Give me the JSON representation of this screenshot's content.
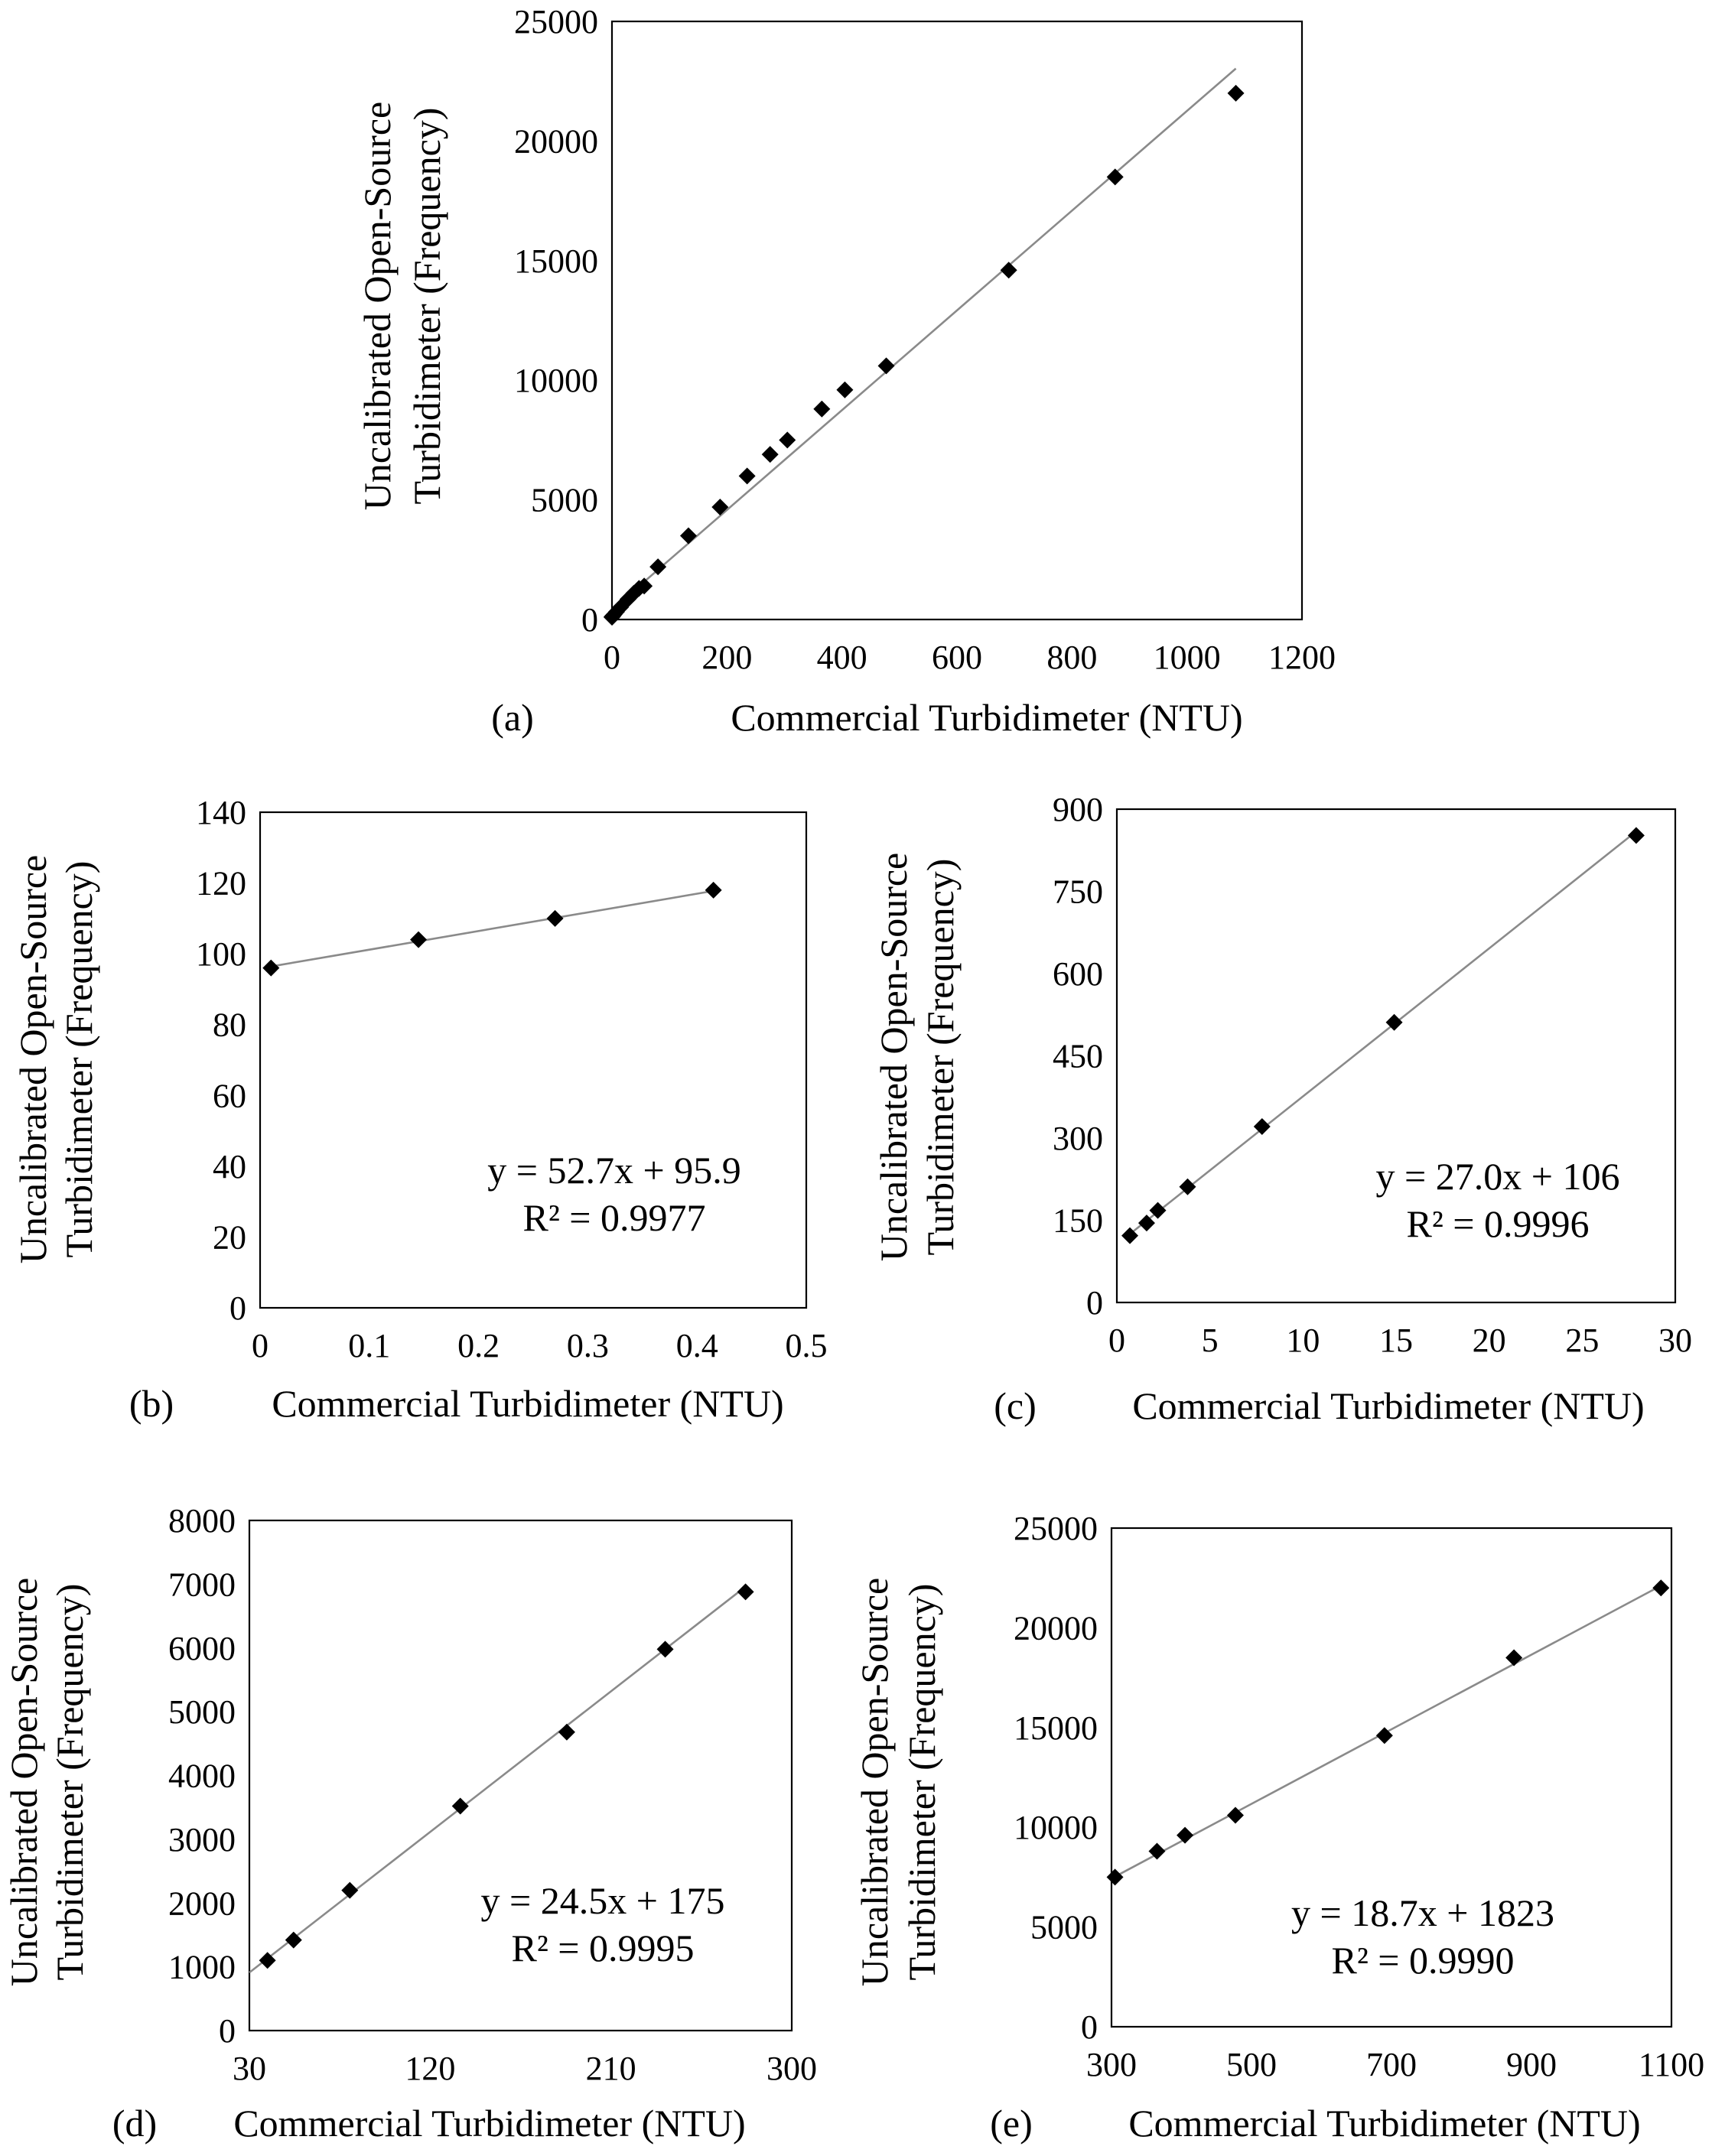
{
  "chart_data": [
    {
      "id": "a",
      "type": "scatter",
      "panel_label": "(a)",
      "xlabel": "Commercial Turbidimeter (NTU)",
      "ylabel": [
        "Uncalibrated Open-Source",
        "Turbidimeter (Frequency)"
      ],
      "xlim": [
        0,
        1200
      ],
      "ylim": [
        0,
        25000
      ],
      "xticks": [
        0,
        200,
        400,
        600,
        800,
        1000,
        1200
      ],
      "yticks": [
        0,
        5000,
        10000,
        15000,
        20000,
        25000
      ],
      "x": [
        0.01,
        0.15,
        0.27,
        0.42,
        0.7,
        1.4,
        2.2,
        3.8,
        7.8,
        14.9,
        27.9,
        38,
        47,
        56,
        80,
        133,
        188,
        235,
        275,
        305,
        365,
        405,
        477,
        690,
        875,
        1085
      ],
      "y": [
        96,
        104,
        110,
        118,
        122,
        145,
        168,
        211,
        321,
        511,
        852,
        1100,
        1300,
        1400,
        2200,
        3500,
        4700,
        6000,
        6900,
        7500,
        8800,
        9600,
        10600,
        14600,
        18500,
        22000
      ],
      "trendline": true,
      "equation": "",
      "r_squared": ""
    },
    {
      "id": "b",
      "type": "scatter",
      "panel_label": "(b)",
      "xlabel": "Commercial Turbidimeter (NTU)",
      "ylabel": [
        "Uncalibrated Open-Source",
        "Turbidimeter (Frequency)"
      ],
      "xlim": [
        0,
        0.5
      ],
      "ylim": [
        0,
        140
      ],
      "xticks": [
        0,
        0.1,
        0.2,
        0.3,
        0.4,
        0.5
      ],
      "yticks": [
        0,
        20,
        40,
        60,
        80,
        100,
        120,
        140
      ],
      "x": [
        0.01,
        0.145,
        0.27,
        0.415
      ],
      "y": [
        96,
        104,
        110,
        118
      ],
      "trendline": true,
      "slope": 52.7,
      "intercept": 95.9,
      "equation": "y = 52.7x + 95.9",
      "r_squared": "R² = 0.9977"
    },
    {
      "id": "c",
      "type": "scatter",
      "panel_label": "(c)",
      "xlabel": "Commercial Turbidimeter (NTU)",
      "ylabel": [
        "Uncalibrated Open-Source",
        "Turbidimeter (Frequency)"
      ],
      "xlim": [
        0,
        30
      ],
      "ylim": [
        0,
        900
      ],
      "xticks": [
        0,
        5,
        10,
        15,
        20,
        25,
        30
      ],
      "yticks": [
        0,
        150,
        300,
        450,
        600,
        750,
        900
      ],
      "x": [
        0.7,
        1.6,
        2.2,
        3.8,
        7.8,
        14.9,
        27.9
      ],
      "y": [
        122,
        145,
        168,
        211,
        321,
        511,
        852
      ],
      "trendline": true,
      "slope": 27.0,
      "intercept": 106,
      "equation": "y = 27.0x + 106",
      "r_squared": "R² = 0.9996"
    },
    {
      "id": "d",
      "type": "scatter",
      "panel_label": "(d)",
      "xlabel": "Commercial Turbidimeter (NTU)",
      "ylabel": [
        "Uncalibrated Open-Source",
        "Turbidimeter (Frequency)"
      ],
      "xlim": [
        30,
        300
      ],
      "ylim": [
        0,
        8000
      ],
      "xticks": [
        30,
        120,
        210,
        300
      ],
      "yticks": [
        0,
        1000,
        2000,
        3000,
        4000,
        5000,
        6000,
        7000,
        8000
      ],
      "x": [
        39,
        52,
        80,
        135,
        188,
        237,
        277
      ],
      "y": [
        1100,
        1420,
        2200,
        3520,
        4680,
        5980,
        6880
      ],
      "trendline": true,
      "slope": 24.5,
      "intercept": 175,
      "equation": "y = 24.5x + 175",
      "r_squared": "R² = 0.9995"
    },
    {
      "id": "e",
      "type": "scatter",
      "panel_label": "(e)",
      "xlabel": "Commercial Turbidimeter (NTU)",
      "ylabel": [
        "Uncalibrated Open-Source",
        "Turbidimeter (Frequency)"
      ],
      "xlim": [
        300,
        1100
      ],
      "ylim": [
        0,
        25000
      ],
      "xticks": [
        300,
        500,
        700,
        900,
        1100
      ],
      "yticks": [
        0,
        5000,
        10000,
        15000,
        20000,
        25000
      ],
      "x": [
        305,
        365,
        405,
        477,
        690,
        875,
        1085
      ],
      "y": [
        7500,
        8800,
        9600,
        10600,
        14600,
        18500,
        22000
      ],
      "trendline": true,
      "slope": 18.7,
      "intercept": 1823,
      "equation": "y = 18.7x + 1823",
      "r_squared": "R² = 0.9990"
    }
  ]
}
